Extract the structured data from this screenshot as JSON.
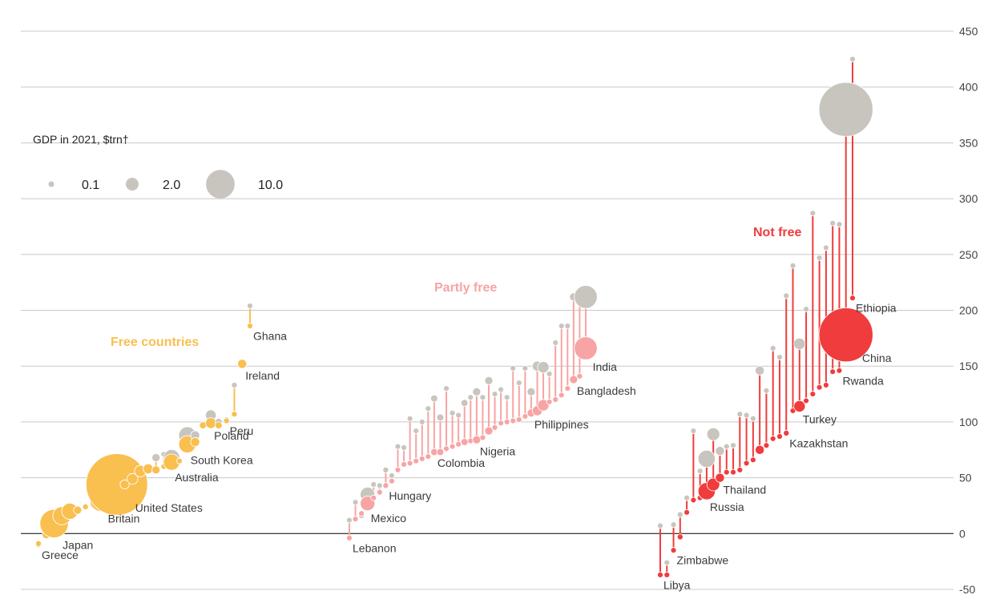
{
  "chart_data": {
    "type": "scatter",
    "title": "",
    "xlabel": "",
    "ylabel": "",
    "ylim": [
      -50,
      450
    ],
    "yticks": [
      -50,
      0,
      50,
      100,
      150,
      200,
      250,
      300,
      350,
      400,
      450
    ],
    "grid": true,
    "encoding": "grey bubble = earlier value, coloured bubble = later value, line links the pair; bubble area = GDP in 2021",
    "colors": {
      "earlier": "#c8c5bf",
      "free": "#f9bf4f",
      "partly_free": "#f8a4a4",
      "not_free": "#f03c3c",
      "axis_text": "#444444",
      "grid": "#c8c8c8"
    },
    "legend": {
      "title": "GDP in 2021, $trn†",
      "sizes": [
        0.1,
        2.0,
        10.0
      ],
      "labels": [
        "0.1",
        "2.0",
        "10.0"
      ]
    },
    "groups": [
      {
        "name": "Free countries",
        "color": "#f9bf4f",
        "points": [
          {
            "label": "Greece",
            "start": -10,
            "end": -9,
            "gdp": 0.2
          },
          {
            "label": "",
            "start": -1,
            "end": -1,
            "gdp": 0.4
          },
          {
            "label": "Japan",
            "start": 9,
            "end": 9,
            "gdp": 4.9
          },
          {
            "label": "",
            "start": 16,
            "end": 16,
            "gdp": 2.0
          },
          {
            "label": "",
            "start": 20,
            "end": 20,
            "gdp": 1.6
          },
          {
            "label": "",
            "start": 21,
            "end": 21,
            "gdp": 0.4
          },
          {
            "label": "",
            "start": 24,
            "end": 24,
            "gdp": 0.2
          },
          {
            "label": "",
            "start": 26,
            "end": 26,
            "gdp": 0.3
          },
          {
            "label": "Britain",
            "start": 30,
            "end": 30,
            "gdp": 3.1
          },
          {
            "label": "",
            "start": 32,
            "end": 32,
            "gdp": 0.6
          },
          {
            "label": "United States",
            "start": 44,
            "end": 44,
            "gdp": 23.0
          },
          {
            "label": "",
            "start": 44,
            "end": 44,
            "gdp": 0.5
          },
          {
            "label": "",
            "start": 49,
            "end": 49,
            "gdp": 0.7
          },
          {
            "label": "",
            "start": 56,
            "end": 56,
            "gdp": 0.8
          },
          {
            "label": "",
            "start": 58,
            "end": 58,
            "gdp": 0.6
          },
          {
            "label": "",
            "start": 68,
            "end": 57,
            "gdp": 0.4
          },
          {
            "label": "",
            "start": 71,
            "end": 60,
            "gdp": 0.1
          },
          {
            "label": "Australia",
            "start": 68,
            "end": 64,
            "gdp": 1.6
          },
          {
            "label": "",
            "start": 65,
            "end": 65,
            "gdp": 0.1
          },
          {
            "label": "South Korea",
            "start": 88,
            "end": 80,
            "gdp": 1.8
          },
          {
            "label": "",
            "start": 88,
            "end": 82,
            "gdp": 0.5
          },
          {
            "label": "",
            "start": 97,
            "end": 97,
            "gdp": 0.3
          },
          {
            "label": "Poland",
            "start": 106,
            "end": 99,
            "gdp": 0.7
          },
          {
            "label": "",
            "start": 100,
            "end": 97,
            "gdp": 0.3
          },
          {
            "label": "Peru",
            "start": 102,
            "end": 101,
            "gdp": 0.2
          },
          {
            "label": "",
            "start": 133,
            "end": 107,
            "gdp": 0.2
          },
          {
            "label": "Ireland",
            "start": 152,
            "end": 152,
            "gdp": 0.5
          },
          {
            "label": "Ghana",
            "start": 204,
            "end": 186,
            "gdp": 0.08
          }
        ]
      },
      {
        "name": "Partly free",
        "color": "#f8a4a4",
        "points": [
          {
            "label": "Lebanon",
            "start": 12,
            "end": -4,
            "gdp": 0.02
          },
          {
            "label": "",
            "start": 28,
            "end": 13,
            "gdp": 0.1
          },
          {
            "label": "",
            "start": 16,
            "end": 18,
            "gdp": 0.03
          },
          {
            "label": "Mexico",
            "start": 35,
            "end": 27,
            "gdp": 1.3
          },
          {
            "label": "",
            "start": 44,
            "end": 32,
            "gdp": 0.1
          },
          {
            "label": "",
            "start": 43,
            "end": 37,
            "gdp": 0.08
          },
          {
            "label": "Hungary",
            "start": 57,
            "end": 43,
            "gdp": 0.2
          },
          {
            "label": "",
            "start": 52,
            "end": 47,
            "gdp": 0.1
          },
          {
            "label": "",
            "start": 78,
            "end": 57,
            "gdp": 0.06
          },
          {
            "label": "",
            "start": 77,
            "end": 62,
            "gdp": 0.1
          },
          {
            "label": "",
            "start": 103,
            "end": 63,
            "gdp": 0.1
          },
          {
            "label": "",
            "start": 92,
            "end": 65,
            "gdp": 0.1
          },
          {
            "label": "",
            "start": 100,
            "end": 67,
            "gdp": 0.1
          },
          {
            "label": "",
            "start": 112,
            "end": 69,
            "gdp": 0.1
          },
          {
            "label": "Colombia",
            "start": 121,
            "end": 73,
            "gdp": 0.3
          },
          {
            "label": "",
            "start": 104,
            "end": 73,
            "gdp": 0.3
          },
          {
            "label": "",
            "start": 130,
            "end": 76,
            "gdp": 0.1
          },
          {
            "label": "",
            "start": 108,
            "end": 78,
            "gdp": 0.1
          },
          {
            "label": "",
            "start": 106,
            "end": 80,
            "gdp": 0.1
          },
          {
            "label": "",
            "start": 117,
            "end": 82,
            "gdp": 0.3
          },
          {
            "label": "",
            "start": 122,
            "end": 83,
            "gdp": 0.1
          },
          {
            "label": "Nigeria",
            "start": 127,
            "end": 84,
            "gdp": 0.4
          },
          {
            "label": "",
            "start": 122,
            "end": 86,
            "gdp": 0.1
          },
          {
            "label": "",
            "start": 137,
            "end": 92,
            "gdp": 0.4
          },
          {
            "label": "",
            "start": 125,
            "end": 95,
            "gdp": 0.1
          },
          {
            "label": "",
            "start": 129,
            "end": 99,
            "gdp": 0.1
          },
          {
            "label": "",
            "start": 122,
            "end": 100,
            "gdp": 0.1
          },
          {
            "label": "",
            "start": 148,
            "end": 101,
            "gdp": 0.1
          },
          {
            "label": "",
            "start": 135,
            "end": 102,
            "gdp": 0.1
          },
          {
            "label": "",
            "start": 148,
            "end": 105,
            "gdp": 0.1
          },
          {
            "label": "Philippines",
            "start": 127,
            "end": 108,
            "gdp": 0.4
          },
          {
            "label": "",
            "start": 150,
            "end": 110,
            "gdp": 0.6
          },
          {
            "label": "",
            "start": 149,
            "end": 115,
            "gdp": 0.8
          },
          {
            "label": "",
            "start": 143,
            "end": 118,
            "gdp": 0.1
          },
          {
            "label": "",
            "start": 171,
            "end": 120,
            "gdp": 0.1
          },
          {
            "label": "",
            "start": 186,
            "end": 124,
            "gdp": 0.1
          },
          {
            "label": "",
            "start": 186,
            "end": 130,
            "gdp": 0.1
          },
          {
            "label": "Bangladesh",
            "start": 212,
            "end": 138,
            "gdp": 0.4
          },
          {
            "label": "",
            "start": 209,
            "end": 141,
            "gdp": 0.1
          },
          {
            "label": "India",
            "start": 212,
            "end": 166,
            "gdp": 3.2
          }
        ]
      },
      {
        "name": "Not free",
        "color": "#f03c3c",
        "points": [
          {
            "label": "Libya",
            "start": 7,
            "end": -37,
            "gdp": 0.04
          },
          {
            "label": "",
            "start": -26,
            "end": -37,
            "gdp": 0.04
          },
          {
            "label": "Zimbabwe",
            "start": 8,
            "end": -15,
            "gdp": 0.03
          },
          {
            "label": "",
            "start": 17,
            "end": -3,
            "gdp": 0.2
          },
          {
            "label": "",
            "start": 32,
            "end": 19,
            "gdp": 0.03
          },
          {
            "label": "",
            "start": 92,
            "end": 30,
            "gdp": 0.1
          },
          {
            "label": "",
            "start": 56,
            "end": 32,
            "gdp": 0.03
          },
          {
            "label": "Russia",
            "start": 67,
            "end": 38,
            "gdp": 1.8
          },
          {
            "label": "",
            "start": 89,
            "end": 44,
            "gdp": 1.0
          },
          {
            "label": "Thailand",
            "start": 74,
            "end": 50,
            "gdp": 0.5
          },
          {
            "label": "",
            "start": 78,
            "end": 55,
            "gdp": 0.1
          },
          {
            "label": "",
            "start": 79,
            "end": 55,
            "gdp": 0.05
          },
          {
            "label": "",
            "start": 107,
            "end": 57,
            "gdp": 0.05
          },
          {
            "label": "",
            "start": 106,
            "end": 63,
            "gdp": 0.05
          },
          {
            "label": "",
            "start": 103,
            "end": 66,
            "gdp": 0.05
          },
          {
            "label": "",
            "start": 146,
            "end": 75,
            "gdp": 0.5
          },
          {
            "label": "",
            "start": 128,
            "end": 79,
            "gdp": 0.05
          },
          {
            "label": "",
            "start": 166,
            "end": 85,
            "gdp": 0.05
          },
          {
            "label": "",
            "start": 158,
            "end": 87,
            "gdp": 0.05
          },
          {
            "label": "Kazakhstan",
            "start": 213,
            "end": 90,
            "gdp": 0.2
          },
          {
            "label": "",
            "start": 240,
            "end": 110,
            "gdp": 0.1
          },
          {
            "label": "Turkey",
            "start": 170,
            "end": 114,
            "gdp": 0.8
          },
          {
            "label": "",
            "start": 201,
            "end": 119,
            "gdp": 0.1
          },
          {
            "label": "",
            "start": 287,
            "end": 125,
            "gdp": 0.05
          },
          {
            "label": "",
            "start": 247,
            "end": 131,
            "gdp": 0.05
          },
          {
            "label": "",
            "start": 256,
            "end": 133,
            "gdp": 0.05
          },
          {
            "label": "",
            "start": 278,
            "end": 145,
            "gdp": 0.05
          },
          {
            "label": "Rwanda",
            "start": 277,
            "end": 146,
            "gdp": 0.01
          },
          {
            "label": "China",
            "start": 380,
            "end": 178,
            "gdp": 17.7
          },
          {
            "label": "Ethiopia",
            "start": 425,
            "end": 211,
            "gdp": 0.1
          }
        ]
      }
    ]
  }
}
